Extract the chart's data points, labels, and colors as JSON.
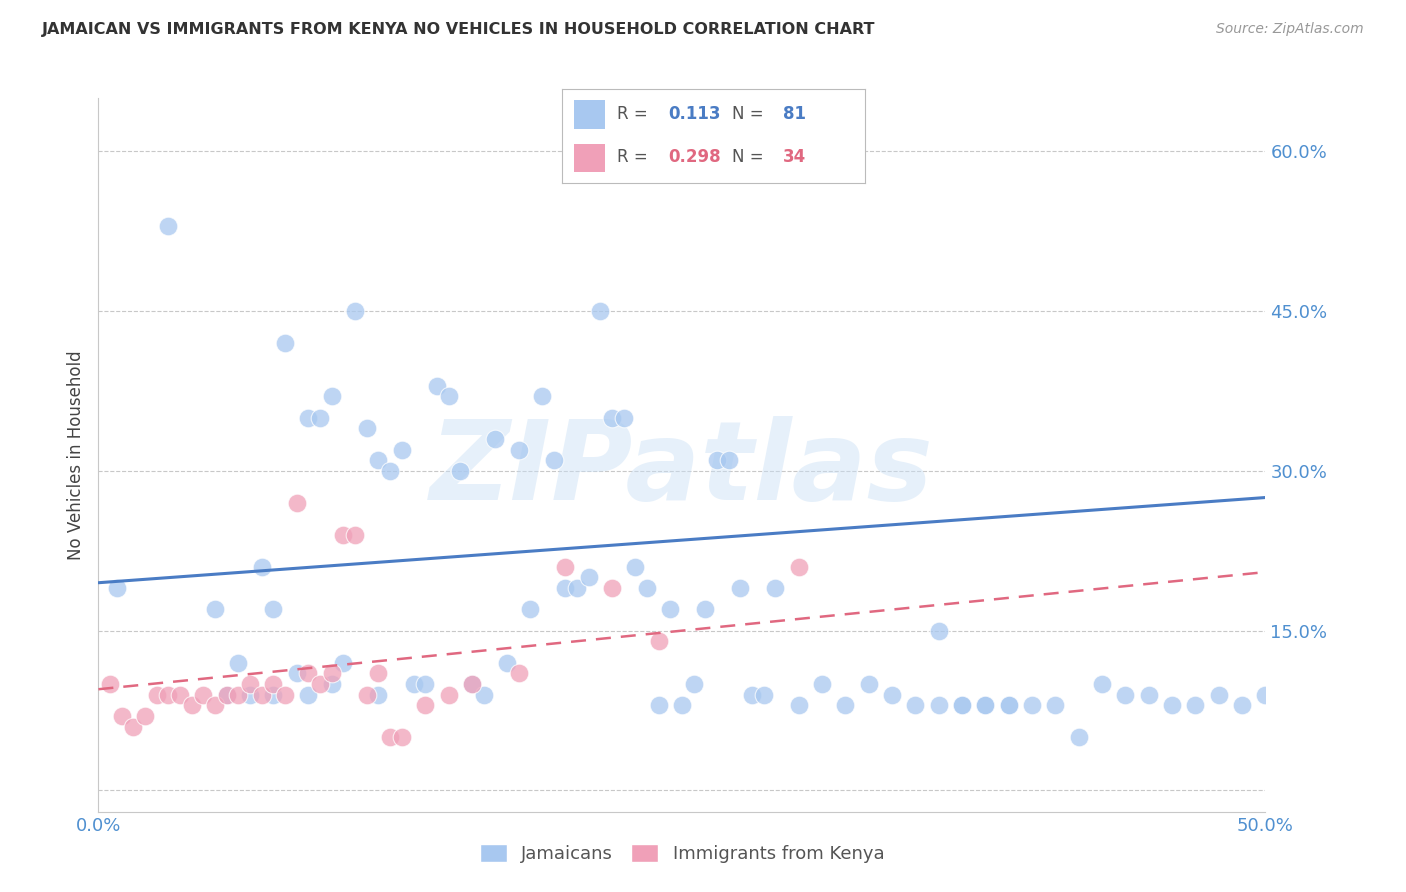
{
  "title": "JAMAICAN VS IMMIGRANTS FROM KENYA NO VEHICLES IN HOUSEHOLD CORRELATION CHART",
  "source": "Source: ZipAtlas.com",
  "ylabel": "No Vehicles in Household",
  "xlim": [
    0.0,
    0.5
  ],
  "ylim": [
    -0.02,
    0.65
  ],
  "xticks": [
    0.0,
    0.1,
    0.2,
    0.3,
    0.4,
    0.5
  ],
  "xticklabels": [
    "0.0%",
    "",
    "",
    "",
    "",
    "50.0%"
  ],
  "yticks": [
    0.0,
    0.15,
    0.3,
    0.45,
    0.6
  ],
  "yticklabels": [
    "",
    "15.0%",
    "30.0%",
    "45.0%",
    "60.0%"
  ],
  "grid_color": "#c8c8c8",
  "background_color": "#ffffff",
  "watermark_text": "ZIPatlas",
  "color_blue": "#a8c8f0",
  "color_pink": "#f0a0b8",
  "color_blue_line": "#4a7cc4",
  "color_pink_line": "#e06880",
  "color_label": "#5090d0",
  "color_title": "#333333",
  "jamaicans_x": [
    0.008,
    0.03,
    0.05,
    0.055,
    0.06,
    0.065,
    0.07,
    0.075,
    0.075,
    0.08,
    0.085,
    0.09,
    0.09,
    0.095,
    0.1,
    0.1,
    0.105,
    0.11,
    0.115,
    0.12,
    0.12,
    0.125,
    0.13,
    0.135,
    0.14,
    0.145,
    0.15,
    0.155,
    0.16,
    0.165,
    0.17,
    0.175,
    0.18,
    0.185,
    0.19,
    0.195,
    0.2,
    0.205,
    0.21,
    0.215,
    0.22,
    0.225,
    0.23,
    0.235,
    0.24,
    0.245,
    0.25,
    0.255,
    0.26,
    0.265,
    0.27,
    0.275,
    0.28,
    0.285,
    0.29,
    0.3,
    0.31,
    0.32,
    0.33,
    0.34,
    0.35,
    0.36,
    0.37,
    0.38,
    0.39,
    0.4,
    0.41,
    0.42,
    0.43,
    0.44,
    0.45,
    0.46,
    0.47,
    0.48,
    0.49,
    0.5,
    0.36,
    0.37,
    0.38,
    0.39
  ],
  "jamaicans_y": [
    0.19,
    0.53,
    0.17,
    0.09,
    0.12,
    0.09,
    0.21,
    0.09,
    0.17,
    0.42,
    0.11,
    0.35,
    0.09,
    0.35,
    0.37,
    0.1,
    0.12,
    0.45,
    0.34,
    0.09,
    0.31,
    0.3,
    0.32,
    0.1,
    0.1,
    0.38,
    0.37,
    0.3,
    0.1,
    0.09,
    0.33,
    0.12,
    0.32,
    0.17,
    0.37,
    0.31,
    0.19,
    0.19,
    0.2,
    0.45,
    0.35,
    0.35,
    0.21,
    0.19,
    0.08,
    0.17,
    0.08,
    0.1,
    0.17,
    0.31,
    0.31,
    0.19,
    0.09,
    0.09,
    0.19,
    0.08,
    0.1,
    0.08,
    0.1,
    0.09,
    0.08,
    0.08,
    0.08,
    0.08,
    0.08,
    0.08,
    0.08,
    0.05,
    0.1,
    0.09,
    0.09,
    0.08,
    0.08,
    0.09,
    0.08,
    0.09,
    0.15,
    0.08,
    0.08,
    0.08
  ],
  "kenya_x": [
    0.005,
    0.01,
    0.015,
    0.02,
    0.025,
    0.03,
    0.035,
    0.04,
    0.045,
    0.05,
    0.055,
    0.06,
    0.065,
    0.07,
    0.075,
    0.08,
    0.085,
    0.09,
    0.095,
    0.1,
    0.105,
    0.11,
    0.115,
    0.12,
    0.125,
    0.13,
    0.14,
    0.15,
    0.16,
    0.18,
    0.2,
    0.22,
    0.24,
    0.3
  ],
  "kenya_y": [
    0.1,
    0.07,
    0.06,
    0.07,
    0.09,
    0.09,
    0.09,
    0.08,
    0.09,
    0.08,
    0.09,
    0.09,
    0.1,
    0.09,
    0.1,
    0.09,
    0.27,
    0.11,
    0.1,
    0.11,
    0.24,
    0.24,
    0.09,
    0.11,
    0.05,
    0.05,
    0.08,
    0.09,
    0.1,
    0.11,
    0.21,
    0.19,
    0.14,
    0.21
  ],
  "blue_line_x": [
    0.0,
    0.5
  ],
  "blue_line_y": [
    0.195,
    0.275
  ],
  "pink_line_x": [
    0.0,
    0.5
  ],
  "pink_line_y": [
    0.095,
    0.205
  ]
}
